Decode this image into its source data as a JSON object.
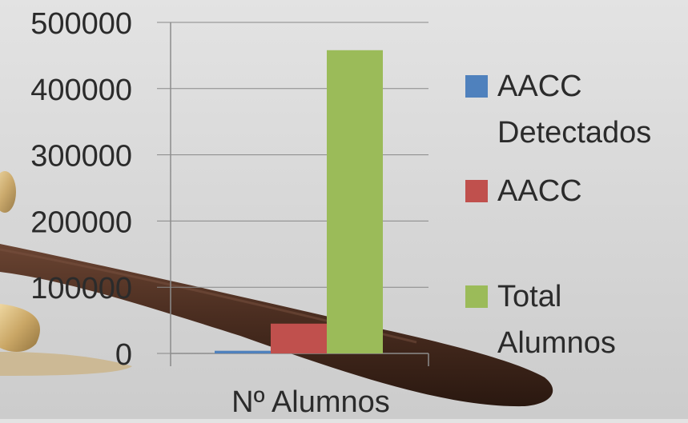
{
  "chart_data": {
    "type": "bar",
    "categories": [
      "Nº Alumnos"
    ],
    "series": [
      {
        "name": "AACC Detectados",
        "color": "#4f81bd",
        "values": [
          4000
        ]
      },
      {
        "name": "AACC",
        "color": "#c0504d",
        "values": [
          45000
        ]
      },
      {
        "name": "Total Alumnos",
        "color": "#9bbb59",
        "values": [
          458000
        ]
      }
    ],
    "yticks": [
      "0",
      "100000",
      "200000",
      "300000",
      "400000",
      "500000"
    ],
    "ylim": [
      0,
      500000
    ],
    "title": "",
    "xlabel": "",
    "ylabel": "",
    "legend_position": "right",
    "grid": true
  },
  "legend": [
    {
      "lines": [
        "AACC",
        "Detectados"
      ]
    },
    {
      "lines": [
        "AACC"
      ]
    },
    {
      "lines": [
        "Total",
        "Alumnos"
      ]
    }
  ],
  "colors": {
    "gridline": "#888888",
    "axis": "#8c8c8c",
    "text": "#2b2b2b",
    "gavel_dark": "#3a2419",
    "gavel_mid": "#5b3a2a",
    "brass": "#c9a25a"
  }
}
